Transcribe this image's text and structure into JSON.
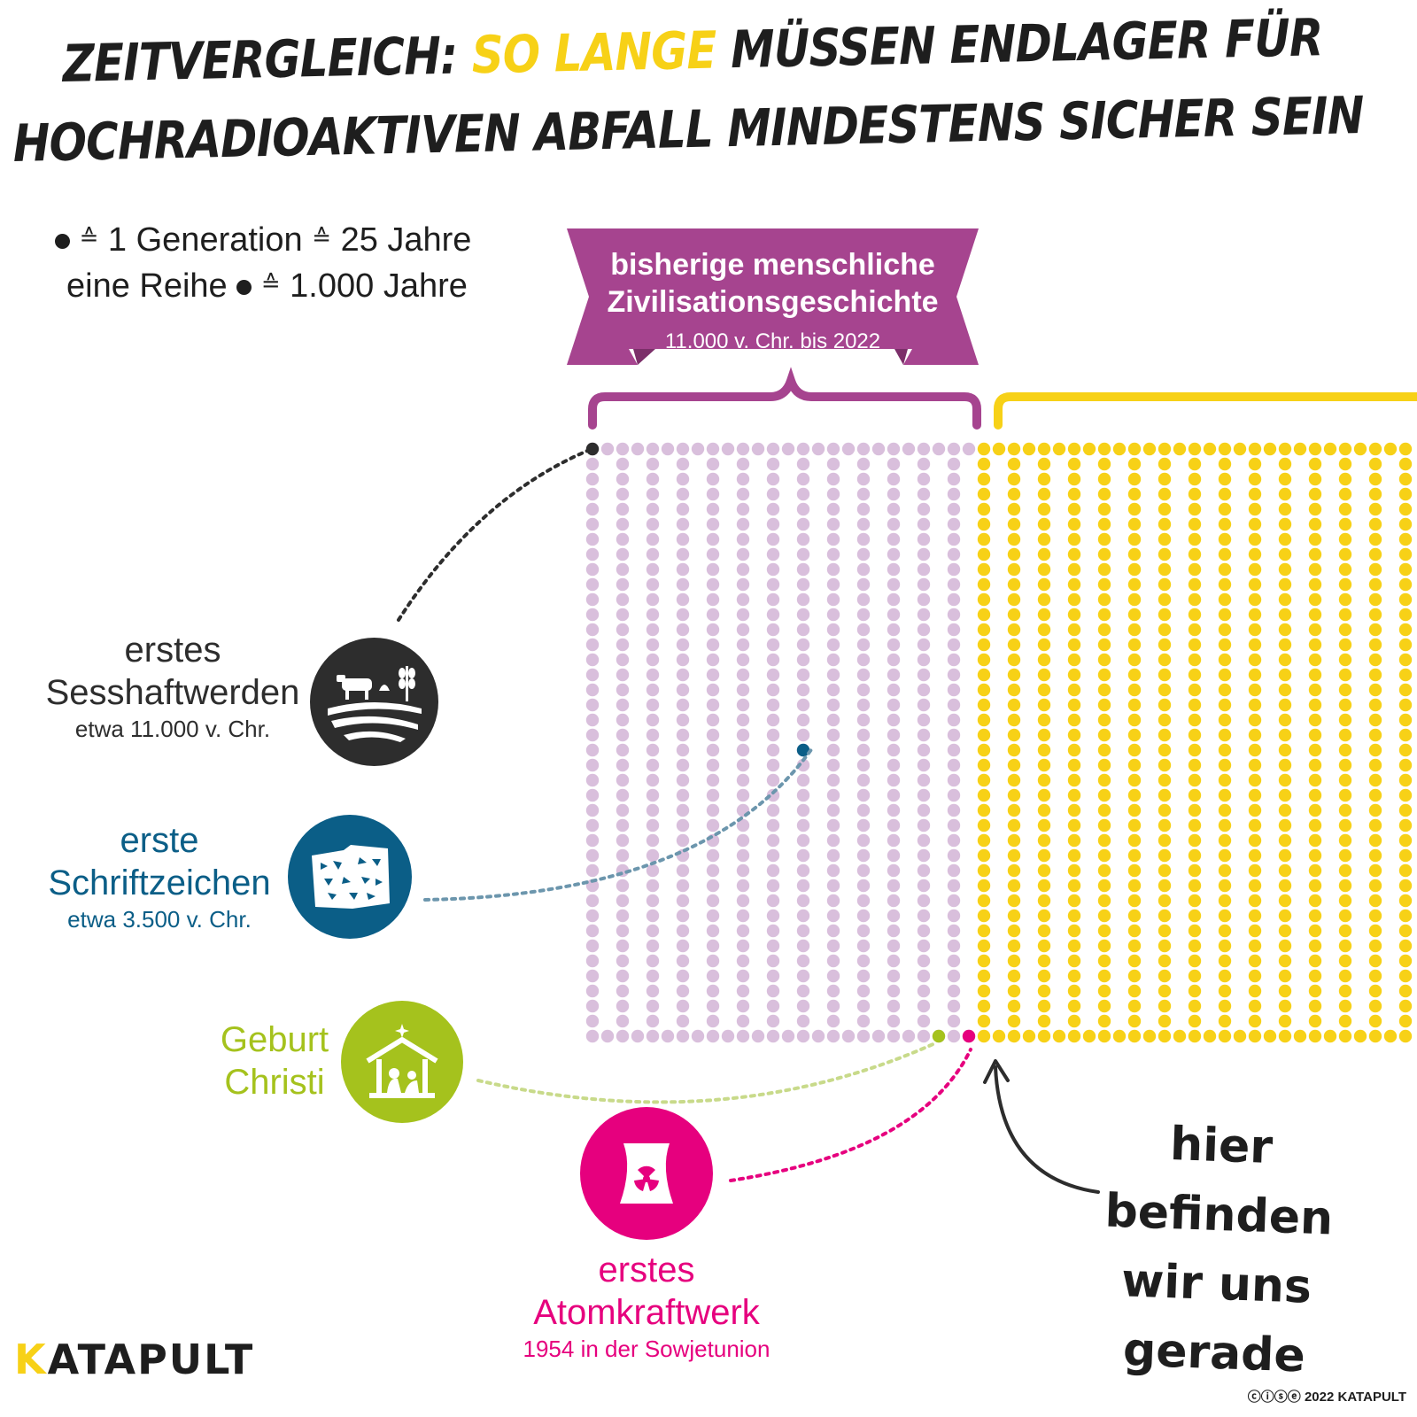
{
  "title": {
    "line1_part1": "Zeitvergleich: ",
    "line1_highlight": "so lange",
    "line1_part2": " müssen Endlager für",
    "line2": "hochradioaktiven Abfall mindestens sicher sein"
  },
  "legend": {
    "row1_a": "1 Generation",
    "row1_b": "25 Jahre",
    "row2_a": "eine Reihe",
    "row2_b": "1.000 Jahre",
    "equals_symbol": "≙"
  },
  "banner": {
    "line1": "bisherige menschliche",
    "line2": "Zivilisationsgeschichte",
    "line3": "11.000 v. Chr. bis 2022"
  },
  "events": [
    {
      "title1": "erstes",
      "title2": "Sesshaftwerden",
      "date": "etwa 11.000 v. Chr.",
      "color": "#2d2d2d",
      "icon": "farm-icon"
    },
    {
      "title1": "erste",
      "title2": "Schriftzeichen",
      "date": "etwa 3.500 v. Chr.",
      "color": "#0b5e87",
      "icon": "cuneiform-tablet-icon"
    },
    {
      "title1": "Geburt",
      "title2": "Christi",
      "date": "",
      "color": "#a5c21d",
      "icon": "nativity-icon"
    },
    {
      "title1": "erstes",
      "title2": "Atomkraftwerk",
      "date": "1954 in der Sowjetunion",
      "color": "#e6007e",
      "icon": "cooling-tower-icon"
    }
  ],
  "here_text": {
    "line1": "hier befinden",
    "line2": "wir uns gerade"
  },
  "brand": {
    "first": "K",
    "rest": "ATAPULT"
  },
  "copyright": "2022 KATAPULT",
  "colors": {
    "past_dots": "#d9bfdc",
    "future_dots": "#f7d117",
    "banner": "#a6448f",
    "highlight": "#f7d117"
  }
}
